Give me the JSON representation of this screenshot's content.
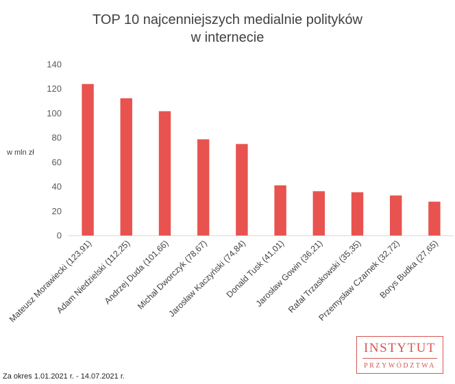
{
  "chart_data": {
    "type": "bar",
    "title_lines": [
      "TOP 10 najcenniejszych medialnie polityków",
      "w internecie"
    ],
    "ylabel": "w mln zł",
    "ylim": [
      0,
      140
    ],
    "yticks": [
      0,
      20,
      40,
      60,
      80,
      100,
      120,
      140
    ],
    "grid": false,
    "categories": [
      "Mateusz Morawiecki (123,91)",
      "Adam Niedzielski (112,25)",
      "Andrzej Duda (101,66)",
      "Michał Dworczyk (78,67)",
      "Jarosław Kaczyński (74,84)",
      "Donald Tusk (41,01)",
      "Jarosław Gowin (36,21)",
      "Rafał Trzaskowski (35,35)",
      "Przemysław Czarnek (32,72)",
      "Borys Budka (27,65)"
    ],
    "values": [
      123.91,
      112.25,
      101.66,
      78.67,
      74.84,
      41.01,
      36.21,
      35.35,
      32.72,
      27.65
    ],
    "bar_color": "#e8534f"
  },
  "footnote": "Za okres 1.01.2021 r. - 14.07.2021 r.",
  "logo": {
    "top": "INSTYTUT",
    "bottom": "PRZYWÓDZTWA",
    "color": "#d9534f"
  }
}
